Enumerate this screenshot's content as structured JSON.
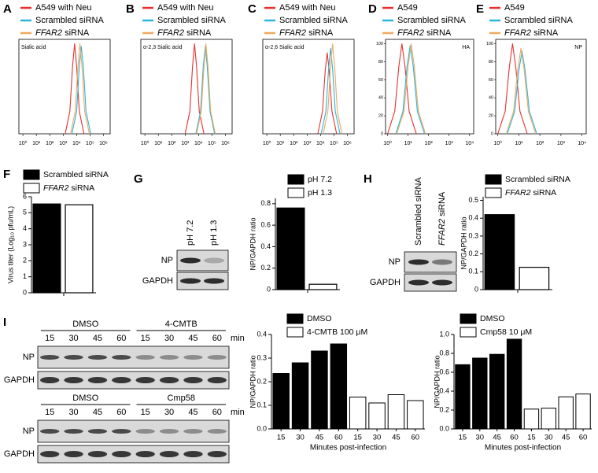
{
  "panels": [
    "A",
    "B",
    "C",
    "D",
    "E",
    "F",
    "G",
    "H",
    "I"
  ],
  "chart_data": [
    {
      "type": "line",
      "annotation": "Sialic acid",
      "xlim": [
        -0.3,
        6.5
      ],
      "xticks": [
        {
          "value": 0,
          "label": "10⁰"
        },
        {
          "value": 1,
          "label": "10¹"
        },
        {
          "value": 2,
          "label": "10²"
        },
        {
          "value": 3,
          "label": "10³"
        },
        {
          "value": 4,
          "label": "10⁴"
        },
        {
          "value": 5,
          "label": "10⁵"
        },
        {
          "value": 6,
          "label": "10⁶"
        }
      ],
      "ylim": [
        0,
        105
      ],
      "series": [
        {
          "name": "A549 with Neu",
          "color": "#e8312f",
          "x": [
            3.15,
            3.5,
            3.7,
            3.85,
            4.0,
            4.2,
            4.55
          ],
          "values": [
            0,
            25,
            75,
            100,
            75,
            25,
            0
          ]
        },
        {
          "name": "Scrambled siRNA",
          "color": "#2bb5d8",
          "x": [
            3.65,
            4.0,
            4.2,
            4.35,
            4.5,
            4.7,
            5.05
          ],
          "values": [
            0,
            25,
            75,
            97,
            75,
            25,
            0
          ]
        },
        {
          "name": "FFAR2 siRNA",
          "color": "#f0a95e",
          "x": [
            3.55,
            3.9,
            4.1,
            4.25,
            4.4,
            4.6,
            4.95
          ],
          "values": [
            0,
            25,
            75,
            100,
            75,
            25,
            0
          ]
        }
      ]
    },
    {
      "type": "line",
      "annotation": "α-2,3 Sialic acid",
      "xlim": [
        -0.3,
        6.5
      ],
      "xticks": [
        {
          "value": 0,
          "label": "10⁰"
        },
        {
          "value": 1,
          "label": "10¹"
        },
        {
          "value": 2,
          "label": "10²"
        },
        {
          "value": 3,
          "label": "10³"
        },
        {
          "value": 4,
          "label": "10⁴"
        },
        {
          "value": 5,
          "label": "10⁵"
        },
        {
          "value": 6,
          "label": "10⁶"
        }
      ],
      "ylim": [
        0,
        105
      ],
      "series": [
        {
          "name": "A549 with Neu",
          "color": "#e8312f",
          "x": [
            3.0,
            3.35,
            3.55,
            3.7,
            3.85,
            4.05,
            4.4
          ],
          "values": [
            0,
            25,
            75,
            100,
            75,
            25,
            0
          ]
        },
        {
          "name": "Scrambled siRNA",
          "color": "#2bb5d8",
          "x": [
            3.8,
            4.15,
            4.35,
            4.5,
            4.65,
            4.85,
            5.2
          ],
          "values": [
            0,
            25,
            75,
            97,
            75,
            25,
            0
          ]
        },
        {
          "name": "FFAR2 siRNA",
          "color": "#f0a95e",
          "x": [
            3.85,
            4.2,
            4.4,
            4.55,
            4.7,
            4.9,
            5.25
          ],
          "values": [
            0,
            25,
            75,
            100,
            75,
            25,
            0
          ]
        }
      ]
    },
    {
      "type": "line",
      "annotation": "α-2,6 Sialic acid",
      "xlim": [
        -0.3,
        6.5
      ],
      "xticks": [
        {
          "value": 0,
          "label": "10⁰"
        },
        {
          "value": 1,
          "label": "10¹"
        },
        {
          "value": 2,
          "label": "10²"
        },
        {
          "value": 3,
          "label": "10³"
        },
        {
          "value": 4,
          "label": "10⁴"
        },
        {
          "value": 5,
          "label": "10⁵"
        },
        {
          "value": 6,
          "label": "10⁶"
        }
      ],
      "ylim": [
        0,
        105
      ],
      "series": [
        {
          "name": "A549 with Neu",
          "color": "#e8312f",
          "x": [
            3.8,
            4.15,
            4.35,
            4.5,
            4.65,
            4.85,
            5.2
          ],
          "values": [
            0,
            25,
            70,
            90,
            70,
            25,
            0
          ]
        },
        {
          "name": "Scrambled siRNA",
          "color": "#2bb5d8",
          "x": [
            4.05,
            4.4,
            4.6,
            4.75,
            4.9,
            5.1,
            5.45
          ],
          "values": [
            0,
            25,
            72,
            95,
            72,
            25,
            0
          ]
        },
        {
          "name": "FFAR2 siRNA",
          "color": "#f0a95e",
          "x": [
            4.2,
            4.55,
            4.75,
            4.9,
            5.05,
            5.25,
            5.6
          ],
          "values": [
            0,
            25,
            75,
            100,
            75,
            25,
            0
          ]
        }
      ]
    },
    {
      "type": "line",
      "annotation": "HA",
      "xlim": [
        -0.1,
        4.2
      ],
      "xticks": [
        {
          "value": 0,
          "label": "10⁰"
        },
        {
          "value": 1,
          "label": "10¹"
        },
        {
          "value": 2,
          "label": "10²"
        },
        {
          "value": 3,
          "label": "10³"
        },
        {
          "value": 4,
          "label": "10⁴"
        }
      ],
      "ylim": [
        0,
        105
      ],
      "yticks": [
        0,
        20,
        40,
        60,
        80,
        100
      ],
      "series": [
        {
          "name": "A549",
          "color": "#e8312f",
          "x": [
            0.0,
            0.35,
            0.55,
            0.7,
            0.85,
            1.05,
            1.4
          ],
          "values": [
            0,
            25,
            75,
            100,
            75,
            25,
            0
          ]
        },
        {
          "name": "Scrambled siRNA",
          "color": "#2bb5d8",
          "x": [
            0.4,
            0.75,
            0.95,
            1.1,
            1.25,
            1.45,
            1.8
          ],
          "values": [
            0,
            25,
            75,
            98,
            75,
            25,
            0
          ]
        },
        {
          "name": "FFAR2 siRNA",
          "color": "#f0a95e",
          "x": [
            0.45,
            0.8,
            1.0,
            1.15,
            1.3,
            1.5,
            1.85
          ],
          "values": [
            0,
            25,
            75,
            100,
            75,
            25,
            0
          ]
        }
      ]
    },
    {
      "type": "line",
      "annotation": "NP",
      "xlim": [
        -0.1,
        4.2
      ],
      "xticks": [
        {
          "value": 0,
          "label": "10⁰"
        },
        {
          "value": 1,
          "label": "10¹"
        },
        {
          "value": 2,
          "label": "10²"
        },
        {
          "value": 3,
          "label": "10³"
        },
        {
          "value": 4,
          "label": "10⁴"
        }
      ],
      "ylim": [
        0,
        105
      ],
      "yticks": [
        0,
        20,
        40,
        60,
        80,
        100
      ],
      "series": [
        {
          "name": "A549",
          "color": "#e8312f",
          "x": [
            0.0,
            0.35,
            0.55,
            0.7,
            0.85,
            1.05,
            1.4
          ],
          "values": [
            0,
            25,
            75,
            100,
            75,
            25,
            0
          ]
        },
        {
          "name": "Scrambled siRNA",
          "color": "#2bb5d8",
          "x": [
            0.45,
            0.8,
            1.0,
            1.15,
            1.3,
            1.5,
            1.85
          ],
          "values": [
            0,
            25,
            70,
            92,
            70,
            25,
            0
          ]
        },
        {
          "name": "FFAR2 siRNA",
          "color": "#f0a95e",
          "x": [
            0.4,
            0.75,
            0.95,
            1.1,
            1.25,
            1.45,
            1.8
          ],
          "values": [
            0,
            25,
            72,
            95,
            72,
            25,
            0
          ]
        }
      ]
    },
    {
      "type": "bar",
      "ylabel": "Virus titer (Log₁₀ pfu/mL)",
      "ylim": [
        0,
        6
      ],
      "yticks": [
        0,
        1,
        2,
        3,
        4,
        5,
        6
      ],
      "series": [
        {
          "name": "Scrambled siRNA",
          "color": "#000000",
          "values": [
            5.55
          ]
        },
        {
          "name": "FFAR2 siRNA",
          "color": "#ffffff",
          "values": [
            5.5
          ]
        }
      ]
    },
    {
      "type": "bar",
      "ylabel": "NP/GAPDH ratio",
      "ylim": [
        0,
        0.85
      ],
      "yticks": [
        0,
        0.2,
        0.4,
        0.6,
        0.8
      ],
      "series": [
        {
          "name": "pH 7.2",
          "color": "#000000",
          "values": [
            0.76
          ]
        },
        {
          "name": "pH 1.3",
          "color": "#ffffff",
          "values": [
            0.05
          ]
        }
      ]
    },
    {
      "type": "bar",
      "ylabel": "NP/GAPDH ratio",
      "ylim": [
        0,
        0.52
      ],
      "yticks": [
        0,
        0.1,
        0.2,
        0.3,
        0.4,
        0.5
      ],
      "series": [
        {
          "name": "Scrambled siRNA",
          "color": "#000000",
          "values": [
            0.42
          ]
        },
        {
          "name": "FFAR2 siRNA",
          "color": "#ffffff",
          "values": [
            0.125
          ]
        }
      ]
    },
    {
      "type": "bar",
      "ylabel": "NP/GAPDH ratio",
      "xlabel": "Minutes post-infection",
      "ylim": [
        0,
        0.4
      ],
      "yticks": [
        {
          "value": 0,
          "label": "0.0"
        },
        0.1,
        0.2,
        0.3,
        0.4
      ],
      "categories": [
        "15",
        "30",
        "45",
        "60",
        "15",
        "30",
        "45",
        "60"
      ],
      "series": [
        {
          "name": "DMSO",
          "color": "#000000",
          "values": [
            0.235,
            0.28,
            0.33,
            0.36,
            null,
            null,
            null,
            null
          ]
        },
        {
          "name": "4-CMTB 100 μM",
          "color": "#ffffff",
          "values": [
            null,
            null,
            null,
            null,
            0.135,
            0.11,
            0.145,
            0.12
          ]
        }
      ]
    },
    {
      "type": "bar",
      "ylabel": "NP/GAPDH ratio",
      "xlabel": "Minutes post-infection",
      "ylim": [
        0,
        1.0
      ],
      "yticks": [
        {
          "value": 0,
          "label": "0.0"
        },
        0.2,
        0.4,
        0.6,
        0.8,
        {
          "value": 1,
          "label": "1.0"
        }
      ],
      "categories": [
        "15",
        "30",
        "45",
        "60",
        "15",
        "30",
        "45",
        "60"
      ],
      "series": [
        {
          "name": "DMSO",
          "color": "#000000",
          "values": [
            0.68,
            0.75,
            0.79,
            0.95,
            null,
            null,
            null,
            null
          ]
        },
        {
          "name": "Cmp58 10 μM",
          "color": "#ffffff",
          "values": [
            null,
            null,
            null,
            null,
            0.21,
            0.22,
            0.34,
            0.37
          ]
        }
      ]
    }
  ],
  "blots": {
    "G": {
      "lanes": [
        "pH 7.2",
        "pH 1.3"
      ],
      "rows": [
        "NP",
        "GAPDH"
      ]
    },
    "H": {
      "lanes": [
        "Scrambled siRNA",
        "FFAR2 siRNA"
      ],
      "rows": [
        "NP",
        "GAPDH"
      ]
    },
    "I": [
      {
        "groups": [
          "DMSO",
          "4-CMTB"
        ],
        "times": [
          "15",
          "30",
          "45",
          "60",
          "15",
          "30",
          "45",
          "60"
        ],
        "unit": "min",
        "rows": [
          "NP",
          "GAPDH"
        ]
      },
      {
        "groups": [
          "DMSO",
          "Cmp58"
        ],
        "times": [
          "15",
          "30",
          "45",
          "60",
          "15",
          "30",
          "45",
          "60"
        ],
        "unit": "min",
        "rows": [
          "NP",
          "GAPDH"
        ]
      }
    ]
  }
}
